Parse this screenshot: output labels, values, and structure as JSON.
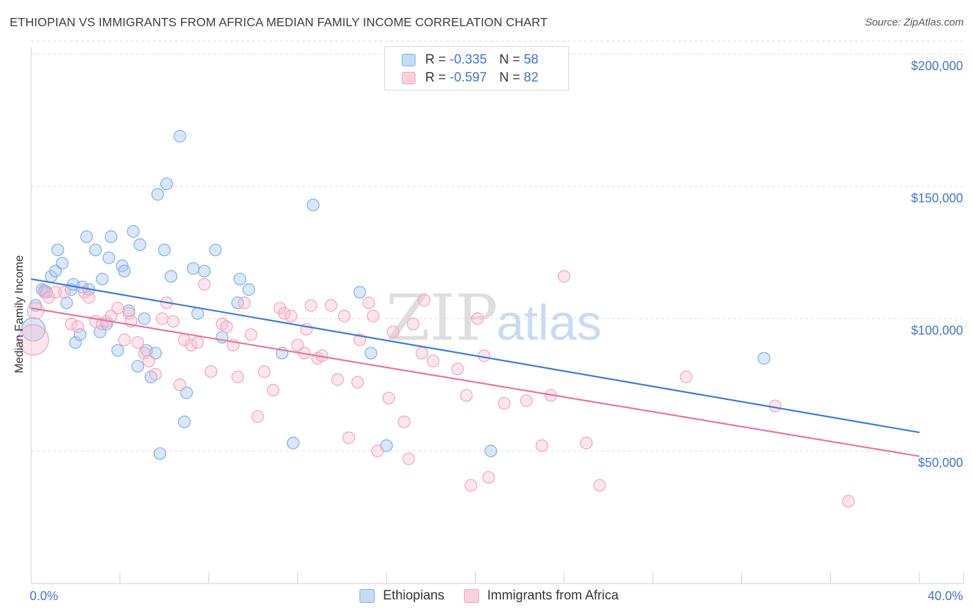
{
  "header": {
    "title": "ETHIOPIAN VS IMMIGRANTS FROM AFRICA MEDIAN FAMILY INCOME CORRELATION CHART",
    "source": "Source: ZipAtlas.com"
  },
  "legend": {
    "r_label": "R =",
    "n_label": "N =",
    "rows": [
      {
        "r": "-0.335",
        "n": "58"
      },
      {
        "r": "-0.597",
        "n": "82"
      }
    ]
  },
  "bottom_legend": [
    "Ethiopians",
    "Immigrants from Africa"
  ],
  "watermark": {
    "zip": "ZIP",
    "atlas": "atlas"
  },
  "chart_data": {
    "type": "scatter",
    "xlabel": "",
    "ylabel": "Median Family Income",
    "xlim": [
      0,
      40
    ],
    "ylim": [
      0,
      205000
    ],
    "x_tick_labels": [
      "0.0%",
      "40.0%"
    ],
    "y_ticks": [
      50000,
      100000,
      150000,
      200000
    ],
    "y_tick_labels": [
      "$50,000",
      "$100,000",
      "$150,000",
      "$200,000"
    ],
    "grid": "dashed horizontal",
    "legend_position": "top-center",
    "colors": {
      "Ethiopians": "#7aaee8",
      "Immigrants from Africa": "#f0a3bd",
      "blue_line": "#3a78d6",
      "pink_line": "#e8729a"
    },
    "series": [
      {
        "name": "Ethiopians",
        "trend": [
          [
            0,
            115000
          ],
          [
            40,
            57000
          ]
        ],
        "points": [
          [
            0.2,
            105000
          ],
          [
            0.5,
            111000
          ],
          [
            0.6,
            110500
          ],
          [
            0.7,
            110000
          ],
          [
            0.9,
            116000
          ],
          [
            1.1,
            118000
          ],
          [
            1.2,
            126000
          ],
          [
            1.4,
            121000
          ],
          [
            1.6,
            106000
          ],
          [
            1.8,
            111000
          ],
          [
            1.9,
            113000
          ],
          [
            2.0,
            91000
          ],
          [
            2.2,
            94000
          ],
          [
            2.3,
            112000
          ],
          [
            2.5,
            131000
          ],
          [
            2.6,
            111000
          ],
          [
            2.9,
            126000
          ],
          [
            3.1,
            95000
          ],
          [
            3.2,
            115000
          ],
          [
            3.4,
            98000
          ],
          [
            3.5,
            123000
          ],
          [
            3.6,
            131000
          ],
          [
            3.9,
            88000
          ],
          [
            4.1,
            120000
          ],
          [
            4.2,
            118000
          ],
          [
            4.4,
            103000
          ],
          [
            4.6,
            133000
          ],
          [
            4.8,
            82000
          ],
          [
            4.9,
            128000
          ],
          [
            5.1,
            100000
          ],
          [
            5.2,
            88000
          ],
          [
            5.4,
            78000
          ],
          [
            5.6,
            87000
          ],
          [
            5.7,
            147000
          ],
          [
            5.8,
            49000
          ],
          [
            6.0,
            126000
          ],
          [
            6.1,
            151000
          ],
          [
            6.3,
            116000
          ],
          [
            6.7,
            169000
          ],
          [
            6.9,
            61000
          ],
          [
            7.0,
            72000
          ],
          [
            7.3,
            119000
          ],
          [
            7.5,
            102000
          ],
          [
            7.8,
            118000
          ],
          [
            8.3,
            126000
          ],
          [
            8.6,
            93000
          ],
          [
            9.3,
            106000
          ],
          [
            9.4,
            115000
          ],
          [
            9.8,
            111000
          ],
          [
            11.3,
            87000
          ],
          [
            11.8,
            53000
          ],
          [
            12.7,
            143000
          ],
          [
            14.8,
            110000
          ],
          [
            15.3,
            87000
          ],
          [
            16.0,
            52000
          ],
          [
            20.7,
            50000
          ],
          [
            33.0,
            85000
          ],
          [
            0.1,
            96000
          ]
        ]
      },
      {
        "name": "Immigrants from Africa",
        "trend": [
          [
            0,
            104000
          ],
          [
            40,
            48000
          ]
        ],
        "points": [
          [
            0.1,
            92000
          ],
          [
            0.2,
            103000
          ],
          [
            0.6,
            110000
          ],
          [
            0.8,
            108000
          ],
          [
            1.1,
            110000
          ],
          [
            1.5,
            110000
          ],
          [
            1.8,
            98000
          ],
          [
            2.1,
            97000
          ],
          [
            2.4,
            110000
          ],
          [
            2.6,
            108000
          ],
          [
            2.9,
            99000
          ],
          [
            3.2,
            98000
          ],
          [
            3.4,
            99000
          ],
          [
            3.6,
            101000
          ],
          [
            3.9,
            104000
          ],
          [
            4.2,
            92000
          ],
          [
            4.4,
            102000
          ],
          [
            4.5,
            99000
          ],
          [
            4.8,
            91000
          ],
          [
            5.1,
            87000
          ],
          [
            5.3,
            84000
          ],
          [
            5.6,
            79000
          ],
          [
            5.9,
            100000
          ],
          [
            6.1,
            106000
          ],
          [
            6.4,
            99000
          ],
          [
            6.7,
            75000
          ],
          [
            6.9,
            92000
          ],
          [
            7.2,
            90000
          ],
          [
            7.5,
            91000
          ],
          [
            7.8,
            113000
          ],
          [
            8.1,
            80000
          ],
          [
            8.6,
            98000
          ],
          [
            8.8,
            97000
          ],
          [
            9.1,
            90000
          ],
          [
            9.3,
            78000
          ],
          [
            9.6,
            106000
          ],
          [
            9.9,
            94000
          ],
          [
            10.2,
            63000
          ],
          [
            10.5,
            80000
          ],
          [
            10.9,
            73000
          ],
          [
            11.2,
            104000
          ],
          [
            11.4,
            102000
          ],
          [
            11.7,
            101000
          ],
          [
            12.0,
            90000
          ],
          [
            12.3,
            87000
          ],
          [
            12.4,
            96000
          ],
          [
            12.6,
            105000
          ],
          [
            12.9,
            85000
          ],
          [
            13.1,
            86000
          ],
          [
            13.5,
            105000
          ],
          [
            13.8,
            77000
          ],
          [
            14.1,
            101000
          ],
          [
            14.3,
            55000
          ],
          [
            14.7,
            76000
          ],
          [
            14.8,
            92000
          ],
          [
            15.2,
            106000
          ],
          [
            15.4,
            101000
          ],
          [
            15.6,
            50000
          ],
          [
            16.1,
            70000
          ],
          [
            16.3,
            95000
          ],
          [
            16.8,
            61000
          ],
          [
            17.0,
            47000
          ],
          [
            17.2,
            98000
          ],
          [
            17.6,
            87000
          ],
          [
            17.7,
            107000
          ],
          [
            18.1,
            84000
          ],
          [
            19.2,
            81000
          ],
          [
            19.6,
            71000
          ],
          [
            19.8,
            37000
          ],
          [
            20.1,
            100000
          ],
          [
            20.4,
            86000
          ],
          [
            20.6,
            40000
          ],
          [
            21.3,
            68000
          ],
          [
            22.3,
            69000
          ],
          [
            23.0,
            52000
          ],
          [
            23.4,
            71000
          ],
          [
            24.0,
            116000
          ],
          [
            25.0,
            53000
          ],
          [
            25.6,
            37000
          ],
          [
            29.5,
            78000
          ],
          [
            33.5,
            67000
          ],
          [
            36.8,
            31000
          ]
        ]
      }
    ]
  }
}
